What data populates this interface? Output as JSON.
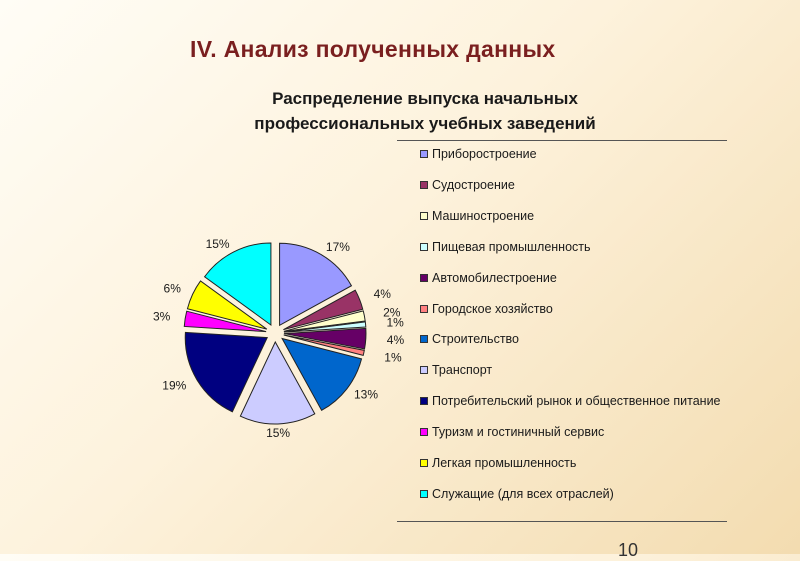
{
  "slide": {
    "title": "IV. Анализ полученных данных",
    "page_number": "10"
  },
  "chart_data": {
    "type": "pie",
    "title_lines": [
      "Распределение выпуска начальных",
      "профессиональных учебных заведений"
    ],
    "legend_position": "right",
    "slices": [
      {
        "name": "Приборостроение",
        "value": 17,
        "label": "17%",
        "color": "#9999ff"
      },
      {
        "name": "Судостроение",
        "value": 4,
        "label": "4%",
        "color": "#993366"
      },
      {
        "name": "Машиностроение",
        "value": 2,
        "label": "2%",
        "color": "#ffffcc"
      },
      {
        "name": "Пищевая промышленность",
        "value": 1,
        "label": "1%",
        "color": "#ccffff"
      },
      {
        "name": "Автомобилестроение",
        "value": 4,
        "label": "4%",
        "color": "#660066"
      },
      {
        "name": "Городское хозяйство",
        "value": 1,
        "label": "1%",
        "color": "#ff8080"
      },
      {
        "name": "Строительство",
        "value": 13,
        "label": "13%",
        "color": "#0066cc"
      },
      {
        "name": "Транспорт",
        "value": 15,
        "label": "15%",
        "color": "#ccccff"
      },
      {
        "name": "Потребительский рынок и общественное питание",
        "value": 19,
        "label": "19%",
        "color": "#000080"
      },
      {
        "name": "Туризм и гостиничный сервис",
        "value": 3,
        "label": "3%",
        "color": "#ff00ff"
      },
      {
        "name": "Легкая промышленность",
        "value": 6,
        "label": "6%",
        "color": "#ffff00"
      },
      {
        "name": "Служащие (для всех отраслей)",
        "value": 15,
        "label": "15%",
        "color": "#00ffff"
      }
    ]
  }
}
